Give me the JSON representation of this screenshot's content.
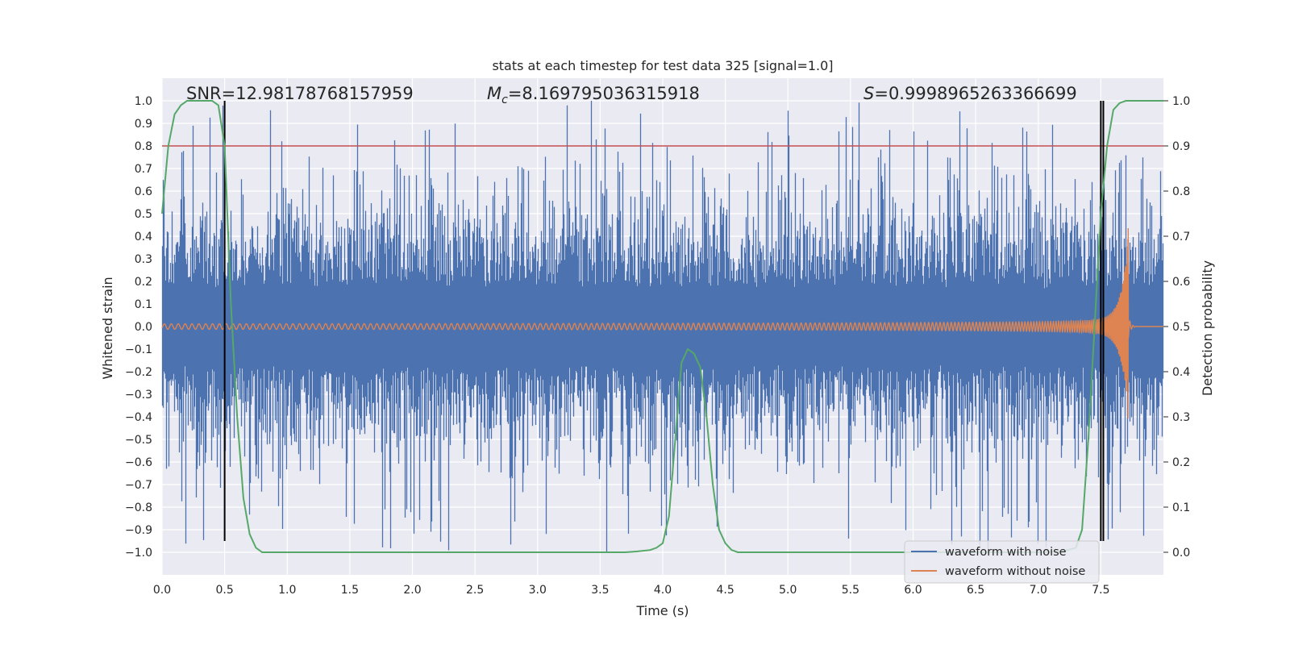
{
  "chart_data": {
    "type": "line",
    "title": "stats at each timestep for test data 325 [signal=1.0]",
    "xlabel": "Time (s)",
    "ylabel": "Whitened strain",
    "ylabel_right": "Detection probability",
    "xlim": [
      0.0,
      8.0
    ],
    "ylim": [
      -1.1,
      1.1
    ],
    "ylim_right": [
      -0.05,
      1.05
    ],
    "xticks": [
      "0.0",
      "0.5",
      "1.0",
      "1.5",
      "2.0",
      "2.5",
      "3.0",
      "3.5",
      "4.0",
      "4.5",
      "5.0",
      "5.5",
      "6.0",
      "6.5",
      "7.0",
      "7.5"
    ],
    "yticks": [
      "1.0",
      "0.9",
      "0.8",
      "0.7",
      "0.6",
      "0.5",
      "0.4",
      "0.3",
      "0.2",
      "0.1",
      "0.0",
      "-0.1",
      "-0.2",
      "-0.3",
      "-0.4",
      "-0.5",
      "-0.6",
      "-0.7",
      "-0.8",
      "-0.9",
      "-1.0"
    ],
    "yticks_right": [
      "1.0",
      "0.9",
      "0.8",
      "0.7",
      "0.6",
      "0.5",
      "0.4",
      "0.3",
      "0.2",
      "0.1",
      "0.0"
    ],
    "annotations": {
      "snr": "SNR=12.98178768157959",
      "mc_symbol": "M",
      "mc_sub": "c",
      "mc_value": "=8.169795036315918",
      "s_symbol": "S",
      "s_value": "=0.9998965263366699"
    },
    "threshold_line": {
      "y": 0.8,
      "color": "#c44e52"
    },
    "vertical_lines": [
      0.5,
      7.5,
      7.52
    ],
    "legend": {
      "placement": "lower-right",
      "entries": [
        {
          "label": "waveform with noise",
          "color": "#4c72b0"
        },
        {
          "label": "waveform without noise",
          "color": "#dd8452"
        }
      ]
    },
    "series": [
      {
        "name": "waveform with noise",
        "color": "#4c72b0",
        "t_range": [
          0.0,
          8.0
        ],
        "typical_amplitude": 0.35,
        "peak_amplitude": 1.0
      },
      {
        "name": "waveform without noise",
        "color": "#dd8452",
        "t_start": 0.0,
        "t_merger": 7.72,
        "t_end": 8.0,
        "peak_amplitude": 0.36,
        "min_amplitude": -0.47
      },
      {
        "name": "detection probability",
        "axis": "right",
        "color": "#55a868",
        "x": [
          0.0,
          0.05,
          0.1,
          0.15,
          0.2,
          0.3,
          0.4,
          0.45,
          0.5,
          0.55,
          0.6,
          0.65,
          0.7,
          0.75,
          0.8,
          1.0,
          2.0,
          3.0,
          3.7,
          3.8,
          3.9,
          3.95,
          4.0,
          4.05,
          4.1,
          4.15,
          4.2,
          4.25,
          4.3,
          4.35,
          4.4,
          4.45,
          4.5,
          4.55,
          4.6,
          5.0,
          6.0,
          7.0,
          7.2,
          7.3,
          7.35,
          7.4,
          7.45,
          7.5,
          7.55,
          7.6,
          7.65,
          7.7,
          8.0
        ],
        "y": [
          0.75,
          0.9,
          0.97,
          0.99,
          1.0,
          1.0,
          1.0,
          0.99,
          0.9,
          0.55,
          0.3,
          0.12,
          0.04,
          0.01,
          0.0,
          0.0,
          0.0,
          0.0,
          0.0,
          0.002,
          0.005,
          0.01,
          0.02,
          0.08,
          0.25,
          0.42,
          0.45,
          0.44,
          0.41,
          0.3,
          0.15,
          0.05,
          0.02,
          0.005,
          0.0,
          0.0,
          0.0,
          0.0,
          0.002,
          0.01,
          0.05,
          0.25,
          0.5,
          0.75,
          0.9,
          0.98,
          0.995,
          1.0,
          1.0
        ]
      }
    ]
  }
}
